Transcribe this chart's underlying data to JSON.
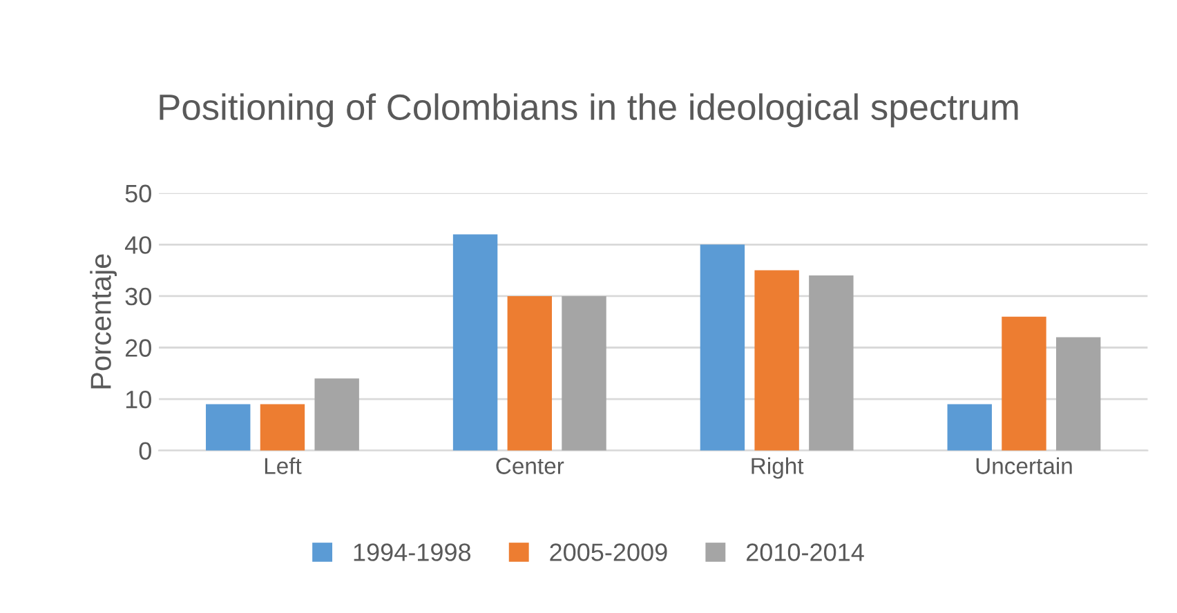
{
  "chart_data": {
    "type": "bar",
    "title": "Positioning of Colombians in the ideological spectrum",
    "ylabel": "Porcentaje",
    "categories": [
      "Left",
      "Center",
      "Right",
      "Uncertain"
    ],
    "series": [
      {
        "name": "1994-1998",
        "color": "#5b9bd5",
        "values": [
          9,
          42,
          40,
          9
        ]
      },
      {
        "name": "2005-2009",
        "color": "#ed7d31",
        "values": [
          9,
          30,
          35,
          26
        ]
      },
      {
        "name": "2010-2014",
        "color": "#a5a5a5",
        "values": [
          14,
          30,
          34,
          22
        ]
      }
    ],
    "ylim": [
      0,
      50
    ],
    "yticks": [
      0,
      10,
      20,
      30,
      40,
      50
    ],
    "grid": "y",
    "legend": "bottom"
  }
}
